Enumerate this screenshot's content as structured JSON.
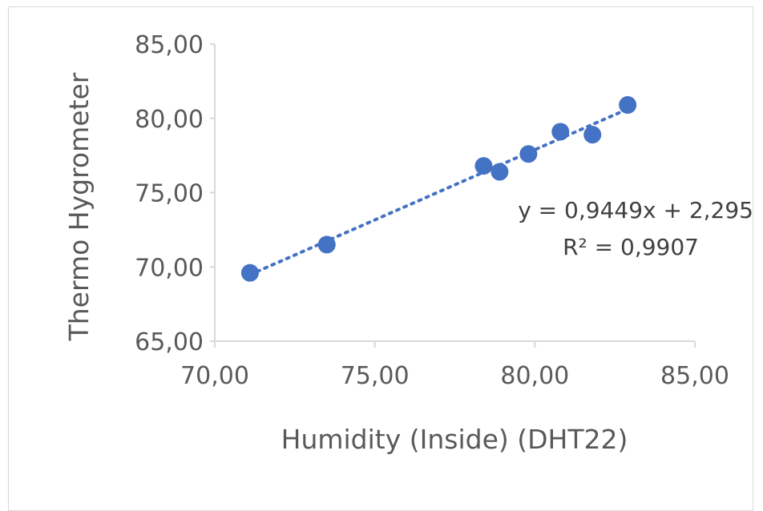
{
  "chart_data": {
    "type": "scatter",
    "xlabel": "Humidity (Inside)  (DHT22)",
    "ylabel": "Thermo Hygrometer",
    "xlim": [
      70,
      85
    ],
    "ylim": [
      65,
      85
    ],
    "x_ticks": [
      "70,00",
      "75,00",
      "80,00",
      "85,00"
    ],
    "y_ticks": [
      "65,00",
      "70,00",
      "75,00",
      "80,00",
      "85,00"
    ],
    "points": [
      {
        "x": 71.1,
        "y": 69.6
      },
      {
        "x": 73.5,
        "y": 71.5
      },
      {
        "x": 78.4,
        "y": 76.8
      },
      {
        "x": 78.9,
        "y": 76.4
      },
      {
        "x": 79.8,
        "y": 77.6
      },
      {
        "x": 80.8,
        "y": 79.1
      },
      {
        "x": 81.8,
        "y": 78.9
      },
      {
        "x": 82.9,
        "y": 80.9
      }
    ],
    "trendline": {
      "slope": 0.9449,
      "intercept": 2.295,
      "style": "dotted"
    },
    "equation": "y = 0,9449x + 2,295",
    "r_squared": "R² = 0,9907",
    "colors": {
      "marker": "#4472c4",
      "axis": "#d9d9d9",
      "text": "#595959"
    },
    "grid": false,
    "legend": "none"
  }
}
